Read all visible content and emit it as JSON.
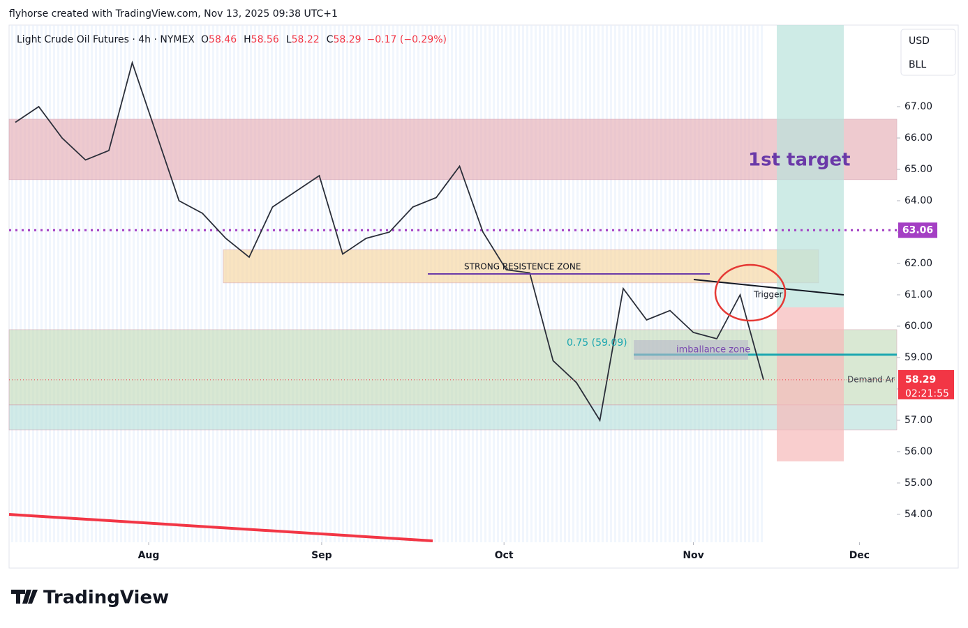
{
  "header": {
    "byline": "flyhorse created with TradingView.com, Nov 13, 2025 09:38 UTC+1",
    "brand": "TradingView"
  },
  "chart_data": {
    "type": "line",
    "symbol": "Light Crude Oil Futures · 4h · NYMEX",
    "ohlc": [
      {
        "label": "O",
        "value": "58.46"
      },
      {
        "label": "H",
        "value": "58.56"
      },
      {
        "label": "L",
        "value": "58.22"
      },
      {
        "label": "C",
        "value": "58.29"
      }
    ],
    "change": "−0.17 (−0.29%)",
    "currency": "USD",
    "unit": "BLL",
    "countdown": "02:21:55",
    "categories": [
      null,
      null,
      null,
      null,
      null,
      null,
      null,
      null,
      null,
      null,
      null,
      null,
      null,
      null,
      null,
      null,
      null,
      null,
      null,
      null,
      null,
      null,
      null,
      null,
      null,
      null,
      null,
      null,
      null,
      null,
      null,
      null,
      null
    ],
    "series": [
      {
        "name": "Light Crude Oil Futures",
        "color": "#2a2e39",
        "values": [
          66.5,
          67.0,
          66.0,
          65.3,
          65.6,
          68.4,
          66.2,
          64.0,
          63.6,
          62.8,
          62.2,
          63.8,
          64.3,
          64.8,
          62.3,
          62.8,
          63.0,
          63.8,
          64.1,
          65.1,
          63.0,
          61.8,
          61.7,
          58.9,
          58.2,
          57.0,
          61.2,
          60.2,
          60.5,
          59.8,
          59.6,
          61.0,
          58.29
        ]
      }
    ],
    "xlim": [
      -0.27,
      37.7
    ],
    "xticks": [
      {
        "value": 5.7,
        "label": "Aug"
      },
      {
        "value": 13.1,
        "label": "Sep"
      },
      {
        "value": 20.9,
        "label": "Oct"
      },
      {
        "value": 29.0,
        "label": "Nov"
      },
      {
        "value": 36.1,
        "label": "Dec"
      }
    ],
    "ylim": [
      53.11,
      69.6
    ],
    "yticks": [
      {
        "value": 54,
        "label": "54.00"
      },
      {
        "value": 55,
        "label": "55.00"
      },
      {
        "value": 56,
        "label": "56.00"
      },
      {
        "value": 57,
        "label": "57.00"
      },
      {
        "value": 58,
        "label": "58.00"
      },
      {
        "value": 59,
        "label": "59.00"
      },
      {
        "value": 60,
        "label": "60.00"
      },
      {
        "value": 61,
        "label": "61.00"
      },
      {
        "value": 62,
        "label": "62.00"
      },
      {
        "value": 63,
        "label": "63.00"
      },
      {
        "value": 64,
        "label": "64.00"
      },
      {
        "value": 65,
        "label": "65.00"
      },
      {
        "value": 66,
        "label": "66.00"
      },
      {
        "value": 67,
        "label": "67.00"
      }
    ],
    "zones": [
      {
        "from": 64.67,
        "to": 66.6,
        "color": "#e8b4bc"
      },
      {
        "from": 61.38,
        "to": 62.44,
        "color": "#f7d9a8"
      },
      {
        "from": 57.49,
        "to": 59.89,
        "color": "#c9dfc1"
      },
      {
        "from": 56.69,
        "to": 57.49,
        "color": "#bfe3df"
      },
      {
        "from": 60.6,
        "to": 69.6,
        "color": "#b9e3dc"
      },
      {
        "from": 55.69,
        "to": 60.6,
        "color": "#f6b9b9"
      }
    ],
    "levels": [
      {
        "value": 63.06,
        "color": "#a43fc4"
      },
      {
        "value": 59.09,
        "color": "#1aa6b0"
      }
    ],
    "annotations": {
      "target": "1st target",
      "resistance": "STRONG RESISTENCE ZONE",
      "fib": "0.75 (59.09)",
      "imbalance": "imballance zone",
      "trigger": "Trigger",
      "demand": "Demand Ar"
    }
  }
}
